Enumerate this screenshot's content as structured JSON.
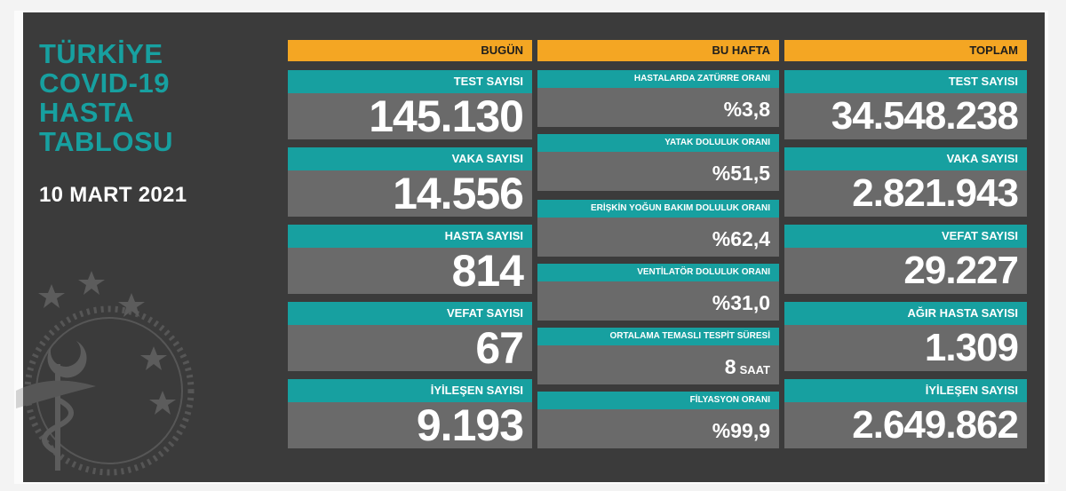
{
  "title_lines": [
    "TÜRKİYE",
    "COVID-19",
    "HASTA",
    "TABLOSU"
  ],
  "date": "10 MART 2021",
  "colors": {
    "accent_teal": "#17a0a0",
    "header_orange": "#f4a623",
    "board": "#3b3b3b",
    "value_bg": "#6a6a6a"
  },
  "today": {
    "header": "BUGÜN",
    "items": [
      {
        "label": "TEST SAYISI",
        "value": "145.130"
      },
      {
        "label": "VAKA SAYISI",
        "value": "14.556"
      },
      {
        "label": "HASTA SAYISI",
        "value": "814"
      },
      {
        "label": "VEFAT SAYISI",
        "value": "67"
      },
      {
        "label": "İYİLEŞEN SAYISI",
        "value": "9.193"
      }
    ]
  },
  "week": {
    "header": "BU HAFTA",
    "items": [
      {
        "label": "HASTALARDA ZATÜRRE ORANI",
        "value": "%3,8"
      },
      {
        "label": "YATAK DOLULUK ORANI",
        "value": "%51,5"
      },
      {
        "label": "ERİŞKİN YOĞUN BAKIM DOLULUK ORANI",
        "value": "%62,4"
      },
      {
        "label": "VENTİLATÖR DOLULUK ORANI",
        "value": "%31,0"
      },
      {
        "label": "ORTALAMA TEMASLI TESPİT SÜRESİ",
        "value": "8",
        "unit": "SAAT"
      },
      {
        "label": "FİLYASYON ORANI",
        "value": "%99,9"
      }
    ]
  },
  "total": {
    "header": "TOPLAM",
    "items": [
      {
        "label": "TEST SAYISI",
        "value": "34.548.238"
      },
      {
        "label": "VAKA SAYISI",
        "value": "2.821.943"
      },
      {
        "label": "VEFAT SAYISI",
        "value": "29.227"
      },
      {
        "label": "AĞIR HASTA SAYISI",
        "value": "1.309"
      },
      {
        "label": "İYİLEŞEN SAYISI",
        "value": "2.649.862"
      }
    ]
  }
}
